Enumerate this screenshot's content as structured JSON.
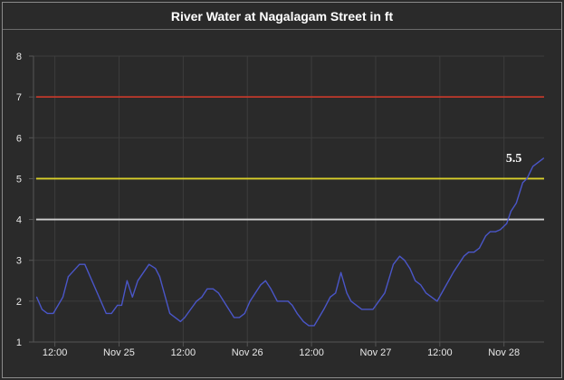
{
  "chart_data": {
    "type": "line",
    "title": "River Water at Nagalagam Street in ft",
    "xlabel": "",
    "ylabel": "",
    "x_unit": "hours since Nov 24 00:00",
    "xlim": [
      8,
      103.5
    ],
    "ylim": [
      1,
      8
    ],
    "grid": true,
    "yticks": [
      1,
      2,
      3,
      4,
      5,
      6,
      7,
      8
    ],
    "xticks": [
      {
        "value": 12,
        "label": "12:00"
      },
      {
        "value": 24,
        "label": "Nov 25"
      },
      {
        "value": 36,
        "label": "12:00"
      },
      {
        "value": 48,
        "label": "Nov 26"
      },
      {
        "value": 60,
        "label": "12:00"
      },
      {
        "value": 72,
        "label": "Nov 27"
      },
      {
        "value": 84,
        "label": "12:00"
      },
      {
        "value": 96,
        "label": "Nov 28"
      }
    ],
    "thresholds": [
      {
        "value": 7,
        "color": "#c0392b"
      },
      {
        "value": 5,
        "color": "#d8cf2a"
      },
      {
        "value": 4,
        "color": "#d0d0d0"
      }
    ],
    "series": [
      {
        "name": "River Water",
        "color": "#4a56c8",
        "x": [
          8.6,
          9.6,
          10.6,
          11.7,
          13.5,
          14.5,
          16.6,
          17.6,
          21.6,
          22.6,
          23.7,
          24.5,
          25.5,
          26.5,
          27.5,
          29.6,
          30.8,
          31.6,
          33.5,
          35.5,
          36.3,
          38.5,
          39.5,
          40.5,
          41.6,
          42.6,
          45.5,
          46.5,
          47.5,
          48.5,
          50.5,
          51.4,
          52.4,
          53.6,
          55.6,
          56.4,
          57.3,
          58.5,
          59.5,
          60.5,
          62.3,
          63.5,
          64.5,
          65.5,
          66.6,
          67.4,
          69.4,
          71.5,
          73.7,
          75.3,
          76.5,
          77.4,
          78.4,
          79.4,
          80.4,
          81.4,
          83.5,
          86.5,
          88.5,
          89.4,
          90.4,
          91.4,
          92.6,
          93.4,
          94.4,
          95.3,
          96.5,
          97.3,
          98.3,
          99.5,
          100.3,
          101.4,
          103.4
        ],
        "y": [
          2.1,
          1.8,
          1.7,
          1.7,
          2.1,
          2.6,
          2.9,
          2.9,
          1.7,
          1.7,
          1.9,
          1.9,
          2.5,
          2.1,
          2.5,
          2.9,
          2.8,
          2.6,
          1.7,
          1.5,
          1.6,
          2.0,
          2.1,
          2.3,
          2.3,
          2.2,
          1.6,
          1.6,
          1.7,
          2.0,
          2.4,
          2.5,
          2.3,
          2.0,
          2.0,
          1.9,
          1.7,
          1.5,
          1.4,
          1.4,
          1.8,
          2.1,
          2.2,
          2.7,
          2.2,
          2.0,
          1.8,
          1.8,
          2.2,
          2.9,
          3.1,
          3.0,
          2.8,
          2.5,
          2.4,
          2.2,
          2.0,
          2.7,
          3.1,
          3.2,
          3.2,
          3.3,
          3.6,
          3.7,
          3.7,
          3.75,
          3.9,
          4.2,
          4.4,
          4.9,
          5.0,
          5.3,
          5.5
        ]
      }
    ],
    "annotations": [
      {
        "x": 103.4,
        "y": 5.5,
        "text": "5.5"
      }
    ]
  }
}
